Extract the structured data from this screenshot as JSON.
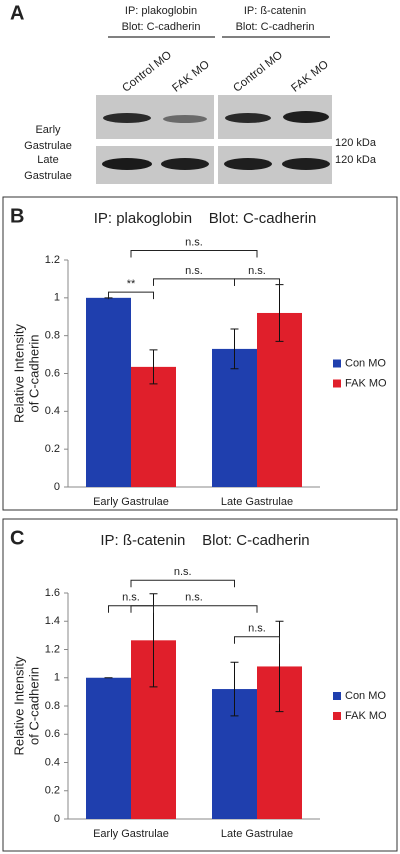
{
  "figure_a": {
    "label": "A",
    "groups": [
      {
        "ip": "IP: plakoglobin",
        "blot": "Blot: C-cadherin",
        "lanes": [
          "Control MO",
          "FAK MO"
        ]
      },
      {
        "ip": "IP: ß-catenin",
        "blot": "Blot: C-cadherin",
        "lanes": [
          "Control MO",
          "FAK MO"
        ]
      }
    ],
    "rows": [
      {
        "name": [
          "Early",
          "Gastrulae"
        ],
        "size": "120 kDa"
      },
      {
        "name": [
          "Late",
          "Gastrulae"
        ],
        "size": "120 kDa"
      }
    ]
  },
  "chart_data": [
    {
      "type": "bar",
      "label": "B",
      "title": "IP: plakoglobin    Blot: C-cadherin",
      "ylabel": [
        "Relative Intensity",
        "of C-cadherin"
      ],
      "categories": [
        "Early Gastrulae",
        "Late Gastrulae"
      ],
      "series": [
        {
          "name": "Con MO",
          "color": "#1f3fae",
          "values": [
            1.0,
            0.73
          ],
          "errors": [
            0,
            0.105
          ]
        },
        {
          "name": "FAK MO",
          "color": "#e01f2b",
          "values": [
            0.635,
            0.92
          ],
          "errors": [
            0.09,
            0.15
          ]
        }
      ],
      "ylim": [
        0,
        1.2
      ],
      "yticks": [
        0,
        0.2,
        0.4,
        0.6,
        0.8,
        1,
        1.2
      ],
      "legend": "right",
      "annotations": [
        "**",
        "n.s.",
        "n.s.",
        "n.s."
      ]
    },
    {
      "type": "bar",
      "label": "C",
      "title": "IP: ß-catenin    Blot: C-cadherin",
      "ylabel": [
        "Relative Intensity",
        "of C-cadherin"
      ],
      "categories": [
        "Early Gastrulae",
        "Late Gastrulae"
      ],
      "series": [
        {
          "name": "Con MO",
          "color": "#1f3fae",
          "values": [
            1.0,
            0.92
          ],
          "errors": [
            0,
            0.19
          ]
        },
        {
          "name": "FAK MO",
          "color": "#e01f2b",
          "values": [
            1.265,
            1.08
          ],
          "errors": [
            0.33,
            0.32
          ]
        }
      ],
      "ylim": [
        0,
        1.6
      ],
      "yticks": [
        0,
        0.2,
        0.4,
        0.6,
        0.8,
        1,
        1.2,
        1.4,
        1.6
      ],
      "legend": "right",
      "annotations": [
        "n.s.",
        "n.s.",
        "n.s.",
        "n.s."
      ]
    }
  ]
}
